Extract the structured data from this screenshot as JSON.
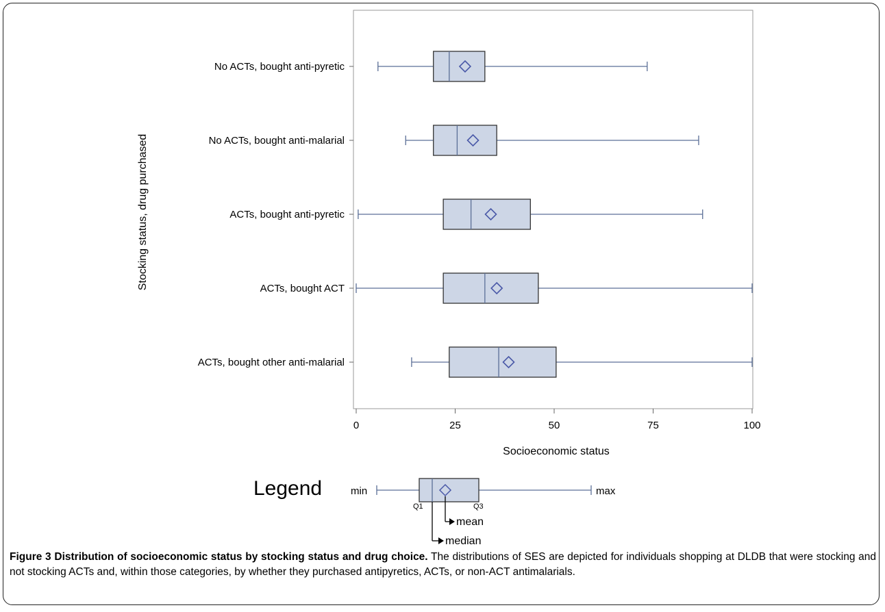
{
  "chart_data": {
    "type": "boxplot",
    "orientation": "horizontal",
    "ylabel": "Stocking status, drug purchased",
    "xlabel": "Socioeconomic status",
    "xlim": [
      0,
      100
    ],
    "xticks": [
      "0",
      "25",
      "50",
      "75",
      "100"
    ],
    "categories": [
      "No ACTs, bought anti-pyretic",
      "No ACTs, bought anti-malarial",
      "ACTs, bought anti-pyretic",
      "ACTs, bought ACT",
      "ACTs, bought other anti-malarial"
    ],
    "boxes": [
      {
        "min": 5.5,
        "q1": 19.5,
        "median": 23.5,
        "q3": 32.5,
        "max": 73.5,
        "mean": 27.5
      },
      {
        "min": 12.5,
        "q1": 19.5,
        "median": 25.5,
        "q3": 35.5,
        "max": 86.5,
        "mean": 29.5
      },
      {
        "min": 0.5,
        "q1": 22.0,
        "median": 29.0,
        "q3": 44.0,
        "max": 87.5,
        "mean": 34.0
      },
      {
        "min": 0,
        "q1": 22.0,
        "median": 32.5,
        "q3": 46.0,
        "max": 100,
        "mean": 35.5
      },
      {
        "min": 14.0,
        "q1": 23.5,
        "median": 36.0,
        "q3": 50.5,
        "max": 100,
        "mean": 38.5
      }
    ],
    "colors": {
      "box_fill": "#cdd6e6",
      "whisker": "#5a6e96",
      "mean_marker": "#4a59a8",
      "median": "#5a6e96"
    }
  },
  "legend": {
    "title": "Legend",
    "min_label": "min",
    "max_label": "max",
    "q1_label": "Q1",
    "q3_label": "Q3",
    "mean_label": "mean",
    "median_label": "median"
  },
  "caption": {
    "bold": "Figure 3 Distribution of socioeconomic status by stocking status and drug choice.",
    "text": "The distributions of SES are depicted for individuals shopping at DLDB that were stocking and not stocking ACTs and, within those categories, by whether they purchased antipyretics, ACTs, or non-ACT antimalarials."
  }
}
